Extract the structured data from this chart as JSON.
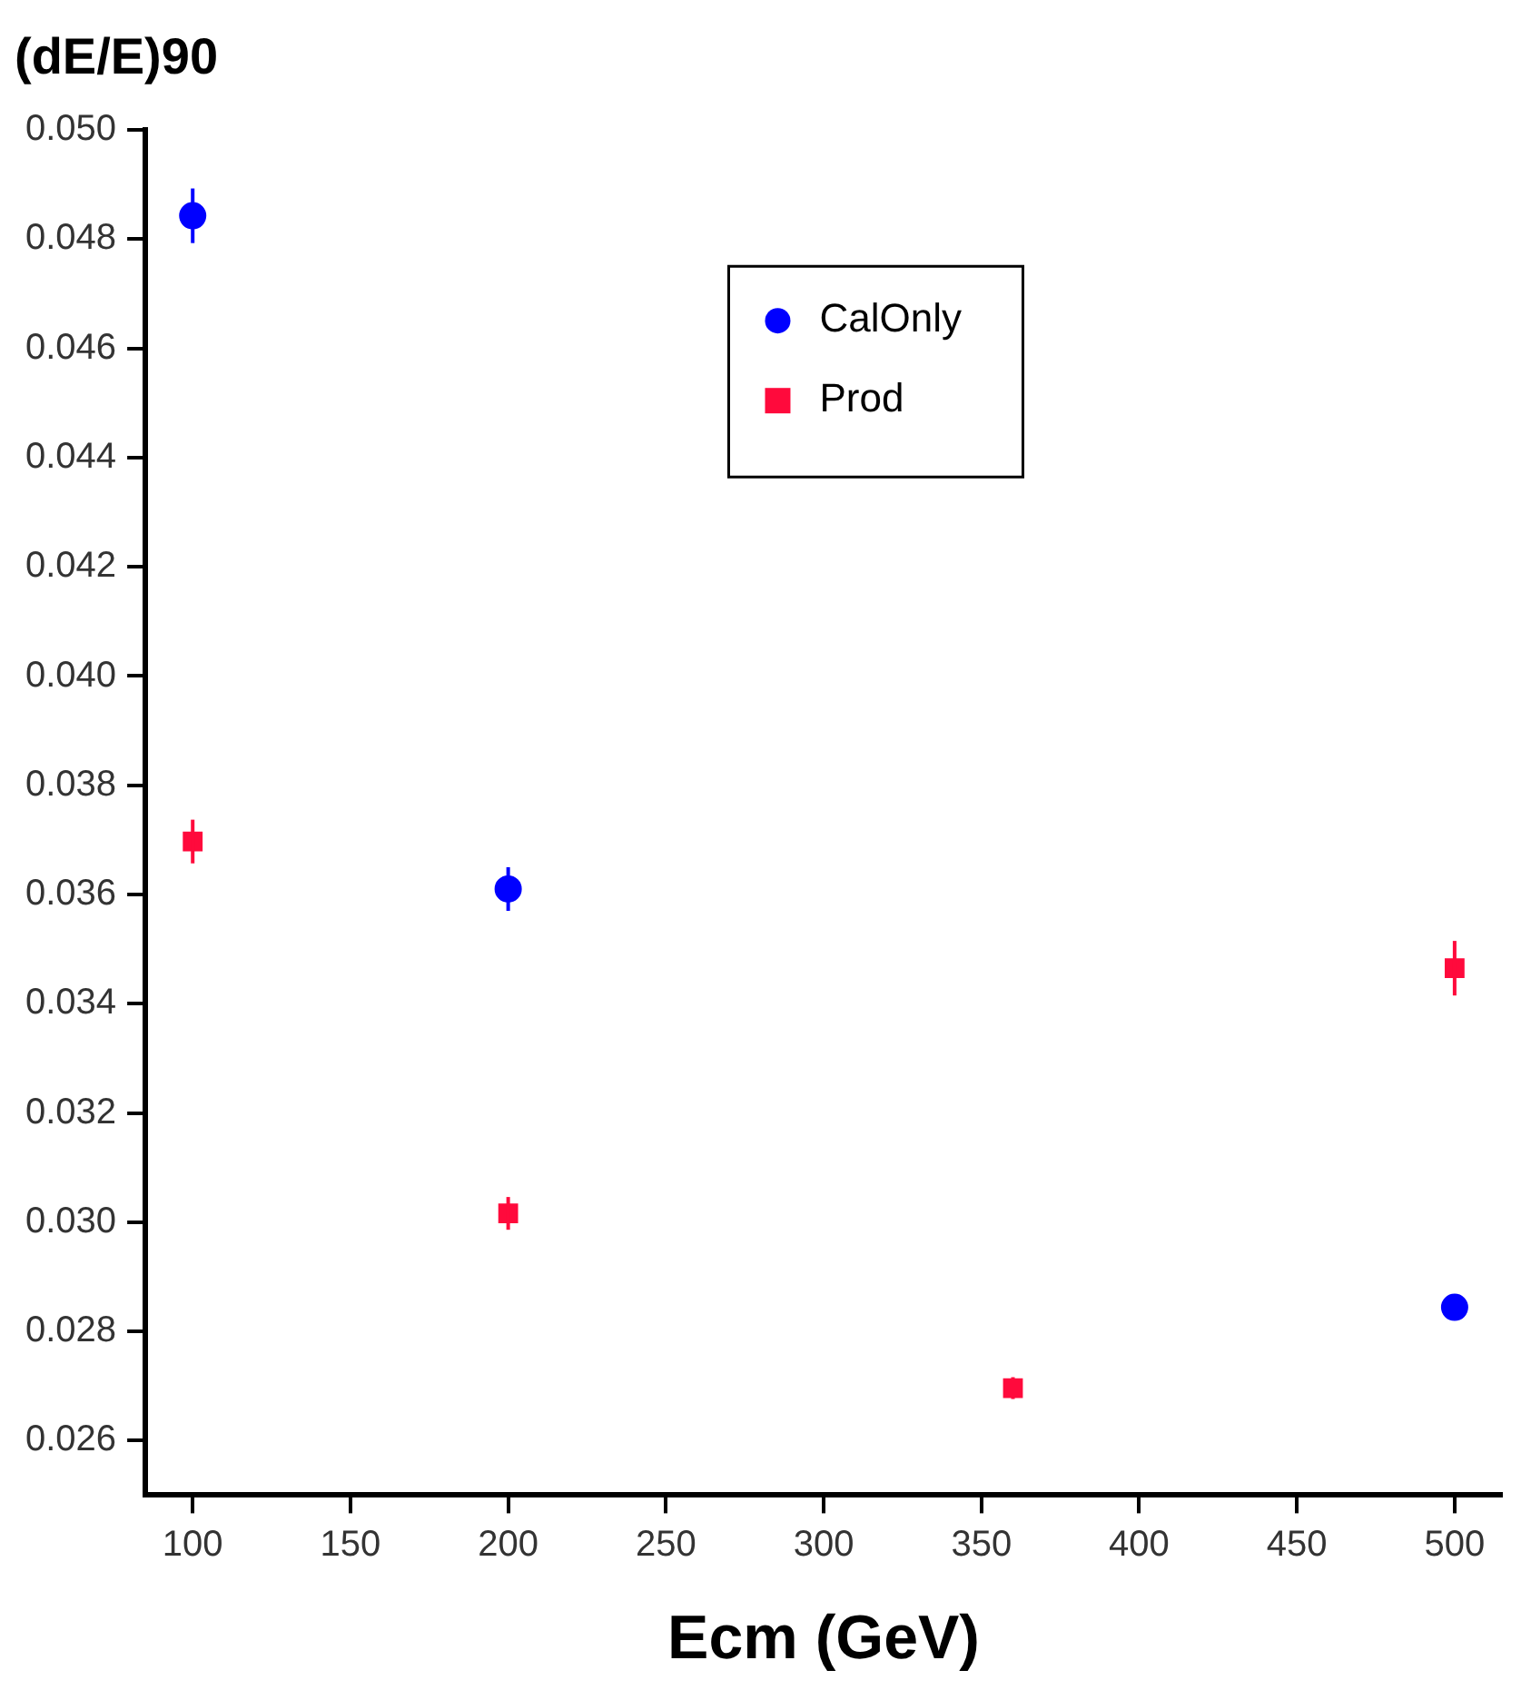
{
  "chart_data": {
    "type": "scatter",
    "title": "(dE/E)90",
    "xlabel": "Ecm (GeV)",
    "xlim": [
      85,
      515
    ],
    "xticks": [
      100,
      150,
      200,
      250,
      300,
      350,
      400,
      450,
      500
    ],
    "ylim": [
      0.025,
      0.05
    ],
    "yticks": [
      {
        "value": 0.026,
        "label": "0.026"
      },
      {
        "value": 0.028,
        "label": "0.028"
      },
      {
        "value": 0.03,
        "label": "0.030"
      },
      {
        "value": 0.032,
        "label": "0.032"
      },
      {
        "value": 0.034,
        "label": "0.034"
      },
      {
        "value": 0.036,
        "label": "0.036"
      },
      {
        "value": 0.038,
        "label": "0.038"
      },
      {
        "value": 0.04,
        "label": "0.040"
      },
      {
        "value": 0.042,
        "label": "0.042"
      },
      {
        "value": 0.044,
        "label": "0.044"
      },
      {
        "value": 0.046,
        "label": "0.046"
      },
      {
        "value": 0.048,
        "label": "0.048"
      },
      {
        "value": 0.05,
        "label": "0.050"
      }
    ],
    "grid": false,
    "legend": "top",
    "series": [
      {
        "name": "CalOnly",
        "color": "#0000ff",
        "marker": "circle",
        "x": [
          100,
          200,
          500
        ],
        "values": [
          0.04843,
          0.0361,
          0.02844
        ],
        "errors": [
          0.0005,
          0.0004,
          0.0002
        ]
      },
      {
        "name": "Prod",
        "color": "#ff0a3c",
        "marker": "square",
        "x": [
          100,
          200,
          360,
          500
        ],
        "values": [
          0.03697,
          0.03016,
          0.02696,
          0.03465
        ],
        "errors": [
          0.0004,
          0.0003,
          0.0002,
          0.0005
        ]
      }
    ]
  }
}
